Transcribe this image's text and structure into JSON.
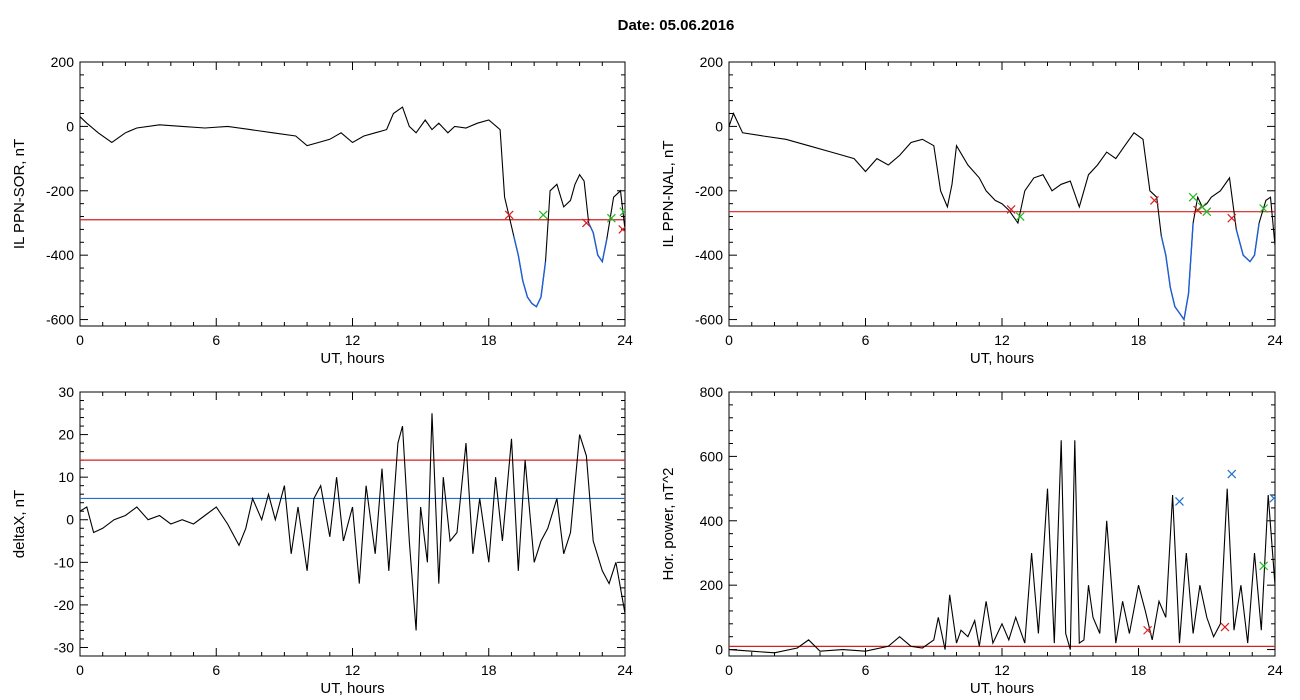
{
  "title": "Date:  05.06.2016",
  "colors": {
    "trace": "#000000",
    "below_threshold": "#1f5fd6",
    "red": "#d62020",
    "green": "#21b821",
    "blue": "#1e6fd0"
  },
  "chart_data": [
    {
      "type": "line",
      "id": "sor",
      "xlabel": "UT, hours",
      "ylabel": "IL PPN-SOR, nT",
      "xlim": [
        0,
        24
      ],
      "ylim": [
        -620,
        200
      ],
      "xticks": [
        0,
        6,
        12,
        18,
        24
      ],
      "yticks": [
        200,
        0,
        -200,
        -400,
        -600
      ],
      "threshold": {
        "value": -290,
        "color": "red"
      },
      "x": [
        0,
        0.3,
        0.8,
        1.4,
        2,
        2.5,
        3.5,
        4.5,
        5.5,
        6.5,
        7.5,
        8.5,
        9.5,
        10,
        10.5,
        11,
        11.5,
        12,
        12.5,
        13,
        13.5,
        13.8,
        14.2,
        14.5,
        14.8,
        15.2,
        15.5,
        15.8,
        16.2,
        16.5,
        17,
        17.5,
        18,
        18.5,
        18.7,
        18.9,
        19.1,
        19.3,
        19.5,
        19.7,
        19.9,
        20.1,
        20.3,
        20.5,
        20.7,
        21,
        21.3,
        21.6,
        21.8,
        22,
        22.2,
        22.4,
        22.6,
        22.8,
        23,
        23.2,
        23.5,
        23.8,
        24
      ],
      "y": [
        30,
        10,
        -20,
        -50,
        -20,
        -5,
        5,
        0,
        -5,
        0,
        -10,
        -20,
        -30,
        -60,
        -50,
        -40,
        -20,
        -50,
        -30,
        -20,
        -10,
        40,
        60,
        0,
        -20,
        20,
        -10,
        10,
        -20,
        0,
        -5,
        10,
        20,
        -10,
        -220,
        -280,
        -340,
        -400,
        -480,
        -530,
        -550,
        -560,
        -530,
        -420,
        -200,
        -180,
        -250,
        -230,
        -180,
        -150,
        -170,
        -300,
        -330,
        -400,
        -420,
        -350,
        -220,
        -200,
        -320
      ],
      "below_threshold_from": 18.85,
      "markers": [
        {
          "x": 18.9,
          "y": -275,
          "color": "red"
        },
        {
          "x": 20.4,
          "y": -275,
          "color": "green"
        },
        {
          "x": 22.3,
          "y": -300,
          "color": "red"
        },
        {
          "x": 23.4,
          "y": -285,
          "color": "green"
        },
        {
          "x": 23.9,
          "y": -320,
          "color": "red"
        },
        {
          "x": 23.95,
          "y": -265,
          "color": "green"
        }
      ]
    },
    {
      "type": "line",
      "id": "nal",
      "xlabel": "UT, hours",
      "ylabel": "IL PPN-NAL, nT",
      "xlim": [
        0,
        24
      ],
      "ylim": [
        -620,
        200
      ],
      "xticks": [
        0,
        6,
        12,
        18,
        24
      ],
      "yticks": [
        200,
        0,
        -200,
        -400,
        -600
      ],
      "threshold": {
        "value": -265,
        "color": "red"
      },
      "x": [
        0,
        0.2,
        0.6,
        1.5,
        2.5,
        3.5,
        4.5,
        5.5,
        6,
        6.5,
        7,
        7.5,
        8,
        8.5,
        9,
        9.3,
        9.6,
        9.8,
        10,
        10.5,
        11,
        11.3,
        11.7,
        12,
        12.3,
        12.7,
        13,
        13.4,
        13.8,
        14.2,
        14.6,
        15,
        15.4,
        15.8,
        16.2,
        16.6,
        17,
        17.4,
        17.8,
        18.2,
        18.5,
        18.8,
        19,
        19.2,
        19.4,
        19.6,
        19.8,
        20,
        20.2,
        20.4,
        20.6,
        20.8,
        21,
        21.2,
        21.6,
        22,
        22.3,
        22.6,
        22.9,
        23.1,
        23.3,
        23.6,
        23.8,
        24
      ],
      "y": [
        0,
        40,
        -20,
        -30,
        -40,
        -60,
        -80,
        -100,
        -140,
        -100,
        -120,
        -90,
        -50,
        -40,
        -60,
        -200,
        -250,
        -180,
        -60,
        -120,
        -160,
        -200,
        -230,
        -240,
        -260,
        -300,
        -200,
        -160,
        -150,
        -200,
        -180,
        -170,
        -250,
        -150,
        -120,
        -80,
        -100,
        -60,
        -20,
        -40,
        -200,
        -220,
        -340,
        -400,
        -500,
        -560,
        -580,
        -600,
        -520,
        -300,
        -220,
        -250,
        -240,
        -220,
        -200,
        -160,
        -320,
        -400,
        -420,
        -400,
        -300,
        -230,
        -220,
        -370
      ],
      "below_threshold_from": 18.7,
      "markers": [
        {
          "x": 12.4,
          "y": -258,
          "color": "red"
        },
        {
          "x": 12.8,
          "y": -280,
          "color": "green"
        },
        {
          "x": 18.7,
          "y": -230,
          "color": "red"
        },
        {
          "x": 20.4,
          "y": -220,
          "color": "green"
        },
        {
          "x": 20.6,
          "y": -260,
          "color": "red"
        },
        {
          "x": 20.8,
          "y": -250,
          "color": "green"
        },
        {
          "x": 21.0,
          "y": -265,
          "color": "green"
        },
        {
          "x": 22.1,
          "y": -285,
          "color": "red"
        },
        {
          "x": 23.5,
          "y": -255,
          "color": "green"
        }
      ]
    },
    {
      "type": "line",
      "id": "deltax",
      "xlabel": "UT, hours",
      "ylabel": "deltaX, nT",
      "xlim": [
        0,
        24
      ],
      "ylim": [
        -32,
        30
      ],
      "xticks": [
        0,
        6,
        12,
        18,
        24
      ],
      "yticks": [
        30,
        20,
        10,
        0,
        -10,
        -20,
        -30
      ],
      "thresholds": [
        {
          "value": 14,
          "color": "red"
        },
        {
          "value": 5,
          "color": "blue"
        }
      ],
      "x": [
        0,
        0.3,
        0.6,
        1,
        1.5,
        2,
        2.5,
        3,
        3.5,
        4,
        4.5,
        5,
        5.5,
        6,
        6.5,
        7,
        7.3,
        7.6,
        8,
        8.3,
        8.6,
        9,
        9.3,
        9.6,
        10,
        10.3,
        10.6,
        11,
        11.3,
        11.6,
        12,
        12.3,
        12.6,
        13,
        13.3,
        13.6,
        14,
        14.2,
        14.5,
        14.8,
        15,
        15.3,
        15.5,
        15.8,
        16,
        16.3,
        16.6,
        17,
        17.3,
        17.6,
        18,
        18.3,
        18.6,
        19,
        19.3,
        19.6,
        20,
        20.3,
        20.6,
        21,
        21.3,
        21.6,
        22,
        22.3,
        22.6,
        23,
        23.3,
        23.6,
        24
      ],
      "y": [
        2,
        3,
        -3,
        -2,
        0,
        1,
        3,
        0,
        1,
        -1,
        0,
        -1,
        1,
        3,
        -1,
        -6,
        -2,
        5,
        0,
        6,
        0,
        8,
        -8,
        3,
        -12,
        5,
        8,
        -4,
        10,
        -5,
        3,
        -15,
        8,
        -8,
        12,
        -12,
        18,
        22,
        -5,
        -26,
        3,
        -10,
        25,
        -15,
        10,
        -5,
        -3,
        18,
        -8,
        5,
        -10,
        10,
        -5,
        19,
        -12,
        14,
        -10,
        -5,
        -2,
        5,
        -8,
        -3,
        20,
        15,
        -5,
        -12,
        -15,
        -10,
        -22
      ],
      "markers": []
    },
    {
      "type": "line",
      "id": "power",
      "xlabel": "UT, hours",
      "ylabel": "Hor. power, nT^2",
      "xlim": [
        0,
        24
      ],
      "ylim": [
        -20,
        800
      ],
      "xticks": [
        0,
        6,
        12,
        18,
        24
      ],
      "yticks": [
        800,
        600,
        400,
        200,
        0
      ],
      "threshold": {
        "value": 10,
        "color": "red"
      },
      "x": [
        0,
        1,
        2,
        3,
        3.5,
        4,
        5,
        6,
        7,
        7.5,
        8,
        8.5,
        9,
        9.2,
        9.5,
        9.7,
        10,
        10.2,
        10.5,
        10.8,
        11,
        11.3,
        11.6,
        12,
        12.3,
        12.6,
        13,
        13.3,
        13.6,
        14,
        14.3,
        14.6,
        14.8,
        15,
        15.2,
        15.4,
        15.6,
        15.8,
        16,
        16.3,
        16.6,
        17,
        17.3,
        17.6,
        18,
        18.3,
        18.6,
        18.9,
        19.2,
        19.5,
        19.8,
        20.1,
        20.4,
        20.7,
        21,
        21.3,
        21.6,
        21.9,
        22.2,
        22.5,
        22.8,
        23.1,
        23.4,
        23.7,
        24
      ],
      "y": [
        0,
        -5,
        -10,
        5,
        30,
        -5,
        0,
        -5,
        10,
        40,
        10,
        5,
        30,
        100,
        0,
        170,
        20,
        60,
        40,
        90,
        10,
        150,
        20,
        80,
        30,
        100,
        20,
        300,
        50,
        500,
        20,
        650,
        50,
        0,
        650,
        20,
        30,
        200,
        100,
        50,
        400,
        20,
        150,
        50,
        200,
        120,
        30,
        150,
        100,
        480,
        20,
        300,
        50,
        200,
        100,
        40,
        80,
        500,
        60,
        200,
        20,
        300,
        60,
        480,
        200
      ],
      "markers": [
        {
          "x": 18.4,
          "y": 60,
          "color": "red"
        },
        {
          "x": 19.8,
          "y": 460,
          "color": "blue"
        },
        {
          "x": 21.8,
          "y": 70,
          "color": "red"
        },
        {
          "x": 22.1,
          "y": 545,
          "color": "blue"
        },
        {
          "x": 23.5,
          "y": 260,
          "color": "green"
        },
        {
          "x": 23.95,
          "y": 470,
          "color": "blue"
        }
      ]
    }
  ]
}
